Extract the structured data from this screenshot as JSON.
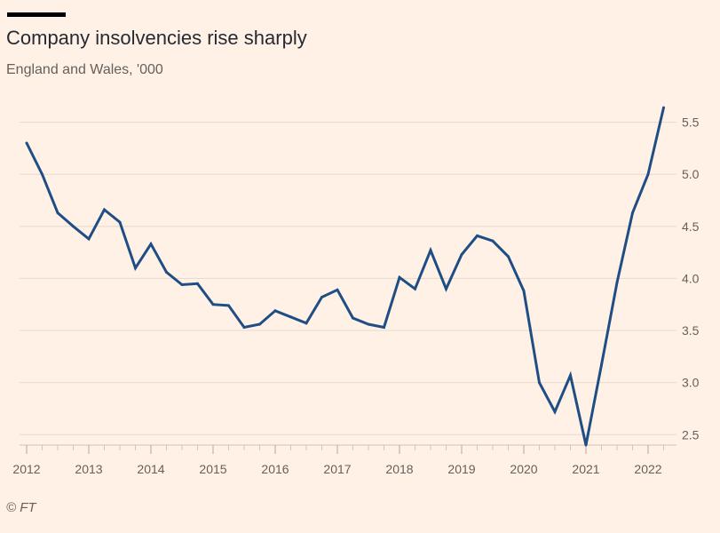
{
  "header": {
    "title": "Company insolvencies rise sharply",
    "subtitle": "England and Wales, '000"
  },
  "footer": {
    "source": "© FT"
  },
  "colors": {
    "background": "#fff1e5",
    "line": "#1f4e85",
    "grid": "#e6d9ce",
    "text": "#66605c"
  },
  "chart_data": {
    "type": "line",
    "title": "Company insolvencies rise sharply",
    "subtitle": "England and Wales, '000",
    "xlabel": "",
    "ylabel": "",
    "x_ticks": [
      "2012",
      "2013",
      "2014",
      "2015",
      "2016",
      "2017",
      "2018",
      "2019",
      "2020",
      "2021",
      "2022"
    ],
    "y_ticks": [
      "2.5",
      "3.0",
      "3.5",
      "4.0",
      "4.5",
      "5.0",
      "5.5"
    ],
    "ylim": [
      2.4,
      5.65
    ],
    "xlim": [
      2012,
      2022.4
    ],
    "grid": true,
    "series": [
      {
        "name": "Company insolvencies",
        "x": [
          2012.0,
          2012.25,
          2012.5,
          2012.75,
          2013.0,
          2013.25,
          2013.5,
          2013.75,
          2014.0,
          2014.25,
          2014.5,
          2014.75,
          2015.0,
          2015.25,
          2015.5,
          2015.75,
          2016.0,
          2016.25,
          2016.5,
          2016.75,
          2017.0,
          2017.25,
          2017.5,
          2017.75,
          2018.0,
          2018.25,
          2018.5,
          2018.75,
          2019.0,
          2019.25,
          2019.5,
          2019.75,
          2020.0,
          2020.25,
          2020.5,
          2020.75,
          2021.0,
          2021.25,
          2021.5,
          2021.75,
          2022.0,
          2022.25
        ],
        "values": [
          5.3,
          5.0,
          4.63,
          4.5,
          4.38,
          4.66,
          4.54,
          4.1,
          4.33,
          4.06,
          3.94,
          3.95,
          3.75,
          3.74,
          3.53,
          3.56,
          3.69,
          3.63,
          3.57,
          3.82,
          3.89,
          3.62,
          3.56,
          3.53,
          4.01,
          3.9,
          4.27,
          3.9,
          4.23,
          4.41,
          4.36,
          4.21,
          3.88,
          3.0,
          2.72,
          3.07,
          2.4,
          3.17,
          3.96,
          4.63,
          5.0,
          5.64
        ]
      }
    ]
  }
}
